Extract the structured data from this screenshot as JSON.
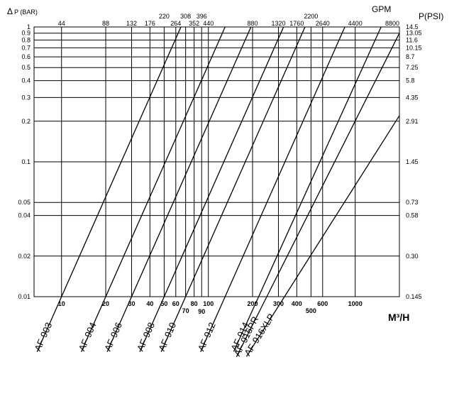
{
  "chart_data": {
    "type": "line",
    "x_scale": "log",
    "y_scale": "log",
    "grid": true,
    "left_axis": {
      "label": "P (BAR)",
      "prefix_symbol": "Δ",
      "ticks": [
        1,
        0.9,
        0.8,
        0.7,
        0.6,
        0.5,
        0.4,
        0.3,
        0.2,
        0.1,
        0.05,
        0.04,
        0.02,
        0.01
      ],
      "tick_labels": [
        "1",
        "0.9",
        "0.8",
        "0.7",
        "0.6",
        "0.5",
        "0.4",
        "0.3",
        "0.2",
        "0.1",
        "0.05",
        "0.04",
        "0.02",
        "0.01"
      ],
      "ylim": [
        0.01,
        1
      ]
    },
    "right_axis": {
      "label": "P(PSI)",
      "tick_labels": [
        "14.5",
        "13.05",
        "11.6",
        "10.15",
        "8.7",
        "7.25",
        "5.8",
        "4.35",
        "2.91",
        "1.45",
        "0.73",
        "0.58",
        "0.30",
        "0.145"
      ]
    },
    "bottom_axis": {
      "label": "M³/H",
      "ticks": [
        10,
        20,
        30,
        40,
        50,
        60,
        70,
        80,
        90,
        100,
        200,
        300,
        400,
        500,
        600,
        1000
      ],
      "tick_labels": [
        "10",
        "20",
        "30",
        "40",
        "50",
        "60",
        "70",
        "80",
        "90",
        "100",
        "200",
        "300",
        "400",
        "500",
        "600",
        "1000"
      ]
    },
    "top_axis": {
      "label": "GPM",
      "tick_labels": [
        "44",
        "88",
        "132",
        "176",
        "220",
        "264",
        "308",
        "352",
        "396",
        "440",
        "880",
        "1320",
        "1760",
        "2200",
        "2640",
        "4400",
        "8800"
      ]
    },
    "vertical_gridlines_m3h": [
      10,
      20,
      30,
      40,
      50,
      60,
      70,
      80,
      90,
      100,
      200,
      300,
      400,
      500,
      600,
      1000
    ],
    "series": [
      {
        "name": "AF-903",
        "points": [
          [
            10,
            0.01
          ],
          [
            65,
            1
          ]
        ]
      },
      {
        "name": "AF-904",
        "points": [
          [
            20,
            0.01
          ],
          [
            130,
            1
          ]
        ]
      },
      {
        "name": "AF-906",
        "points": [
          [
            30,
            0.01
          ],
          [
            195,
            1
          ]
        ]
      },
      {
        "name": "AF-908",
        "points": [
          [
            50,
            0.01
          ],
          [
            325,
            1
          ]
        ]
      },
      {
        "name": "AF-910",
        "points": [
          [
            70,
            0.01
          ],
          [
            455,
            1
          ]
        ]
      },
      {
        "name": "AF-912",
        "points": [
          [
            130,
            0.01
          ],
          [
            850,
            1
          ]
        ]
      },
      {
        "name": "AF-914",
        "points": [
          [
            220,
            0.01
          ],
          [
            1500,
            1
          ]
        ]
      },
      {
        "name": "AF-916PR",
        "points": [
          [
            250,
            0.01
          ],
          [
            2000,
            0.9
          ]
        ]
      },
      {
        "name": "AF-916XLP",
        "points": [
          [
            330,
            0.01
          ],
          [
            2000,
            0.22
          ]
        ]
      }
    ]
  }
}
